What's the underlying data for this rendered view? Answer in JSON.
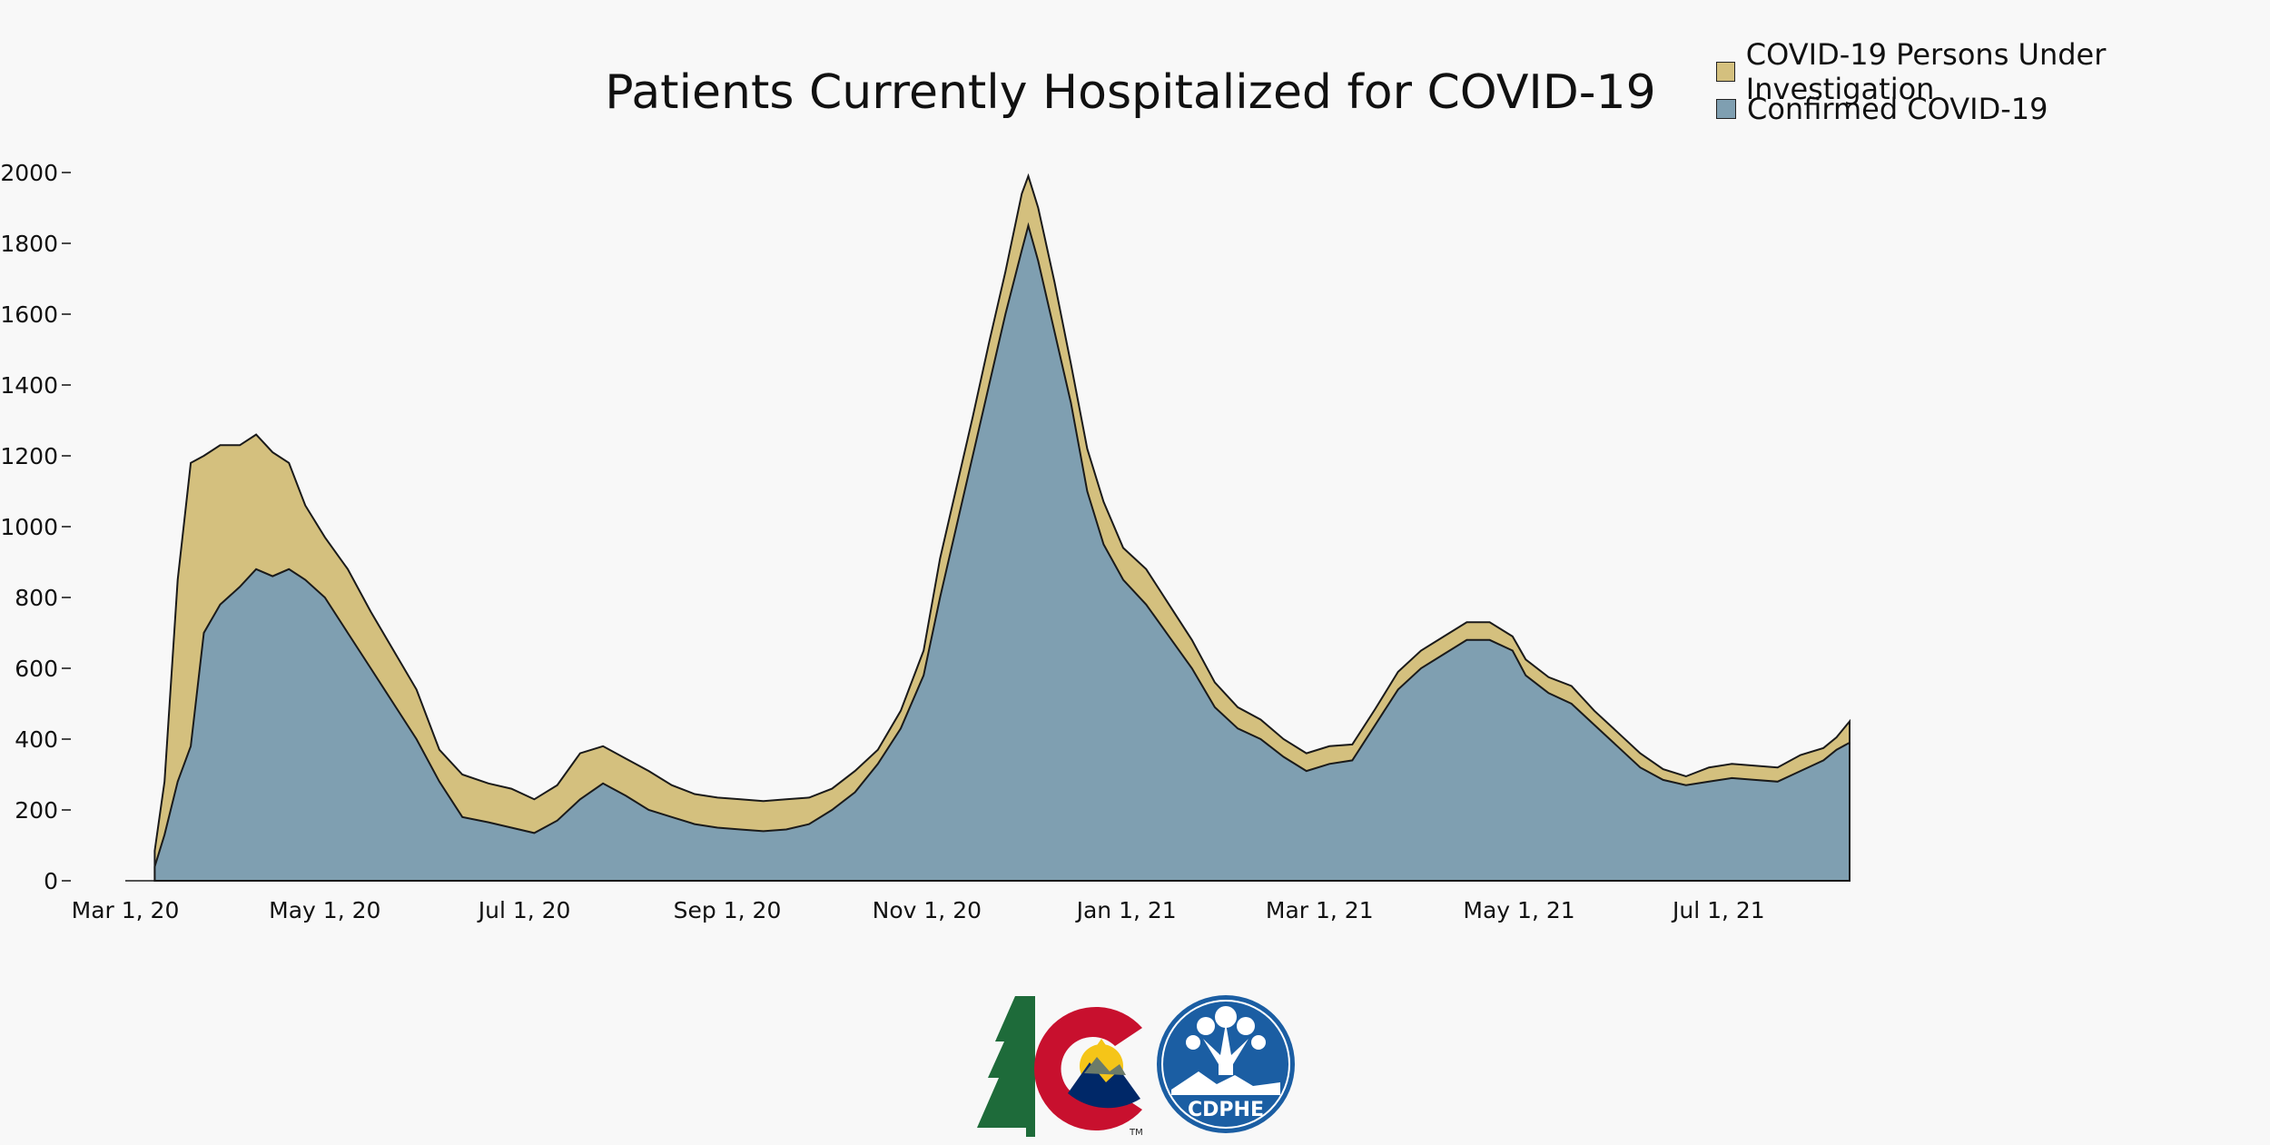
{
  "chart_data": {
    "type": "area",
    "stacked": true,
    "title": "Patients Currently Hospitalized for COVID-19",
    "xlabel": "",
    "ylabel": "",
    "ylim": [
      0,
      2000
    ],
    "yticks": [
      "0",
      "200",
      "400",
      "600",
      "800",
      "1000",
      "1200",
      "1400",
      "1600",
      "1800",
      "2000"
    ],
    "xticks": [
      "Mar 1, 20",
      "May 1, 20",
      "Jul 1, 20",
      "Sep 1, 20",
      "Nov 1, 20",
      "Jan 1, 21",
      "Mar 1, 21",
      "May 1, 21",
      "Jul 1, 21"
    ],
    "grid": false,
    "legend_position": "top-right",
    "x": [
      "2020-03-10",
      "2020-03-13",
      "2020-03-17",
      "2020-03-21",
      "2020-03-25",
      "2020-03-30",
      "2020-04-05",
      "2020-04-10",
      "2020-04-15",
      "2020-04-20",
      "2020-04-25",
      "2020-05-01",
      "2020-05-08",
      "2020-05-15",
      "2020-05-22",
      "2020-05-29",
      "2020-06-05",
      "2020-06-12",
      "2020-06-20",
      "2020-06-27",
      "2020-07-04",
      "2020-07-11",
      "2020-07-18",
      "2020-07-25",
      "2020-08-01",
      "2020-08-08",
      "2020-08-15",
      "2020-08-22",
      "2020-08-29",
      "2020-09-05",
      "2020-09-12",
      "2020-09-19",
      "2020-09-26",
      "2020-10-03",
      "2020-10-10",
      "2020-10-17",
      "2020-10-24",
      "2020-10-31",
      "2020-11-05",
      "2020-11-10",
      "2020-11-15",
      "2020-11-20",
      "2020-11-25",
      "2020-11-30",
      "2020-12-02",
      "2020-12-05",
      "2020-12-10",
      "2020-12-15",
      "2020-12-20",
      "2020-12-25",
      "2020-12-31",
      "2021-01-07",
      "2021-01-14",
      "2021-01-21",
      "2021-01-28",
      "2021-02-04",
      "2021-02-11",
      "2021-02-18",
      "2021-02-25",
      "2021-03-04",
      "2021-03-11",
      "2021-03-18",
      "2021-03-25",
      "2021-04-01",
      "2021-04-08",
      "2021-04-15",
      "2021-04-22",
      "2021-04-29",
      "2021-05-03",
      "2021-05-10",
      "2021-05-17",
      "2021-05-24",
      "2021-05-31",
      "2021-06-07",
      "2021-06-14",
      "2021-06-21",
      "2021-06-28",
      "2021-07-05",
      "2021-07-12",
      "2021-07-19",
      "2021-07-26",
      "2021-08-02",
      "2021-08-06",
      "2021-08-10"
    ],
    "series": [
      {
        "name": "Confirmed COVID-19",
        "color": "#7f9fb1",
        "values": [
          40,
          130,
          280,
          380,
          700,
          780,
          830,
          880,
          860,
          880,
          850,
          800,
          700,
          600,
          500,
          400,
          280,
          180,
          165,
          150,
          135,
          170,
          230,
          275,
          240,
          200,
          180,
          160,
          150,
          145,
          140,
          145,
          160,
          200,
          250,
          330,
          430,
          580,
          800,
          1000,
          1200,
          1400,
          1600,
          1780,
          1850,
          1750,
          1550,
          1350,
          1100,
          950,
          850,
          780,
          690,
          600,
          490,
          430,
          400,
          350,
          310,
          330,
          340,
          440,
          540,
          600,
          640,
          680,
          680,
          650,
          580,
          530,
          500,
          440,
          380,
          320,
          285,
          270,
          280,
          290,
          285,
          280,
          310,
          340,
          370,
          390
        ]
      },
      {
        "name": "COVID-19 Persons Under Investigation",
        "color": "#d4c07e",
        "values": [
          45,
          150,
          570,
          800,
          500,
          450,
          400,
          380,
          350,
          300,
          210,
          170,
          180,
          160,
          150,
          140,
          90,
          120,
          110,
          110,
          95,
          100,
          130,
          105,
          105,
          110,
          90,
          85,
          85,
          85,
          85,
          85,
          75,
          60,
          60,
          40,
          50,
          70,
          110,
          110,
          110,
          120,
          120,
          160,
          140,
          150,
          140,
          110,
          120,
          120,
          90,
          100,
          90,
          80,
          70,
          60,
          55,
          50,
          50,
          50,
          45,
          45,
          50,
          50,
          50,
          50,
          50,
          40,
          45,
          45,
          50,
          40,
          40,
          40,
          30,
          25,
          40,
          40,
          40,
          40,
          45,
          35,
          35,
          60
        ]
      }
    ]
  },
  "logos": {
    "colorado": "colorado-state-logo",
    "cdphe": {
      "text": "CDPHE",
      "tm": "TM"
    }
  },
  "colors": {
    "background": "#f8f8f8",
    "confirmed": "#7f9fb1",
    "pui": "#d4c07e",
    "outline": "#1a1a1a"
  }
}
